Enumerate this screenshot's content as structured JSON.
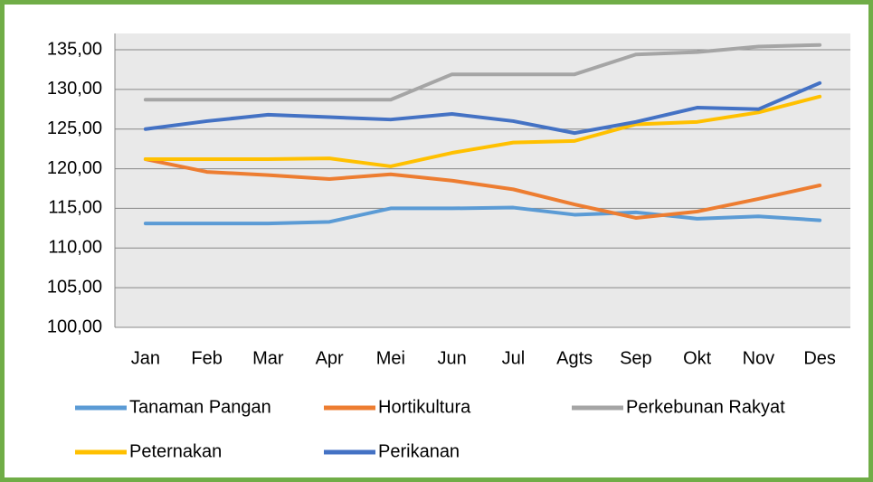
{
  "chart_data": {
    "type": "line",
    "categories": [
      "Jan",
      "Feb",
      "Mar",
      "Apr",
      "Mei",
      "Jun",
      "Jul",
      "Agts",
      "Sep",
      "Okt",
      "Nov",
      "Des"
    ],
    "series": [
      {
        "name": "Tanaman Pangan",
        "color": "#5b9bd5",
        "values": [
          113.1,
          113.1,
          113.1,
          113.3,
          115.0,
          115.0,
          115.1,
          114.2,
          114.5,
          113.7,
          114.0,
          113.5
        ]
      },
      {
        "name": "Hortikultura",
        "color": "#ed7d31",
        "values": [
          121.2,
          119.6,
          119.2,
          118.7,
          119.3,
          118.5,
          117.4,
          115.5,
          113.8,
          114.6,
          116.2,
          117.9
        ]
      },
      {
        "name": "Perkebunan Rakyat",
        "color": "#a5a5a5",
        "values": [
          128.7,
          128.7,
          128.7,
          128.7,
          128.7,
          131.9,
          131.9,
          131.9,
          134.4,
          134.7,
          135.4,
          135.6
        ]
      },
      {
        "name": "Peternakan",
        "color": "#ffc000",
        "values": [
          121.2,
          121.2,
          121.2,
          121.3,
          120.3,
          122.0,
          123.3,
          123.5,
          125.6,
          125.9,
          127.1,
          129.1
        ]
      },
      {
        "name": "Perikanan",
        "color": "#4472c4",
        "values": [
          125.0,
          126.0,
          126.8,
          126.5,
          126.2,
          126.9,
          126.0,
          124.5,
          125.9,
          127.7,
          127.5,
          130.8
        ]
      }
    ],
    "ylim": [
      100,
      135
    ],
    "yticks": [
      {
        "value": 100,
        "label": "100,00"
      },
      {
        "value": 105,
        "label": "105,00"
      },
      {
        "value": 110,
        "label": "110,00"
      },
      {
        "value": 115,
        "label": "115,00"
      },
      {
        "value": 120,
        "label": "120,00"
      },
      {
        "value": 125,
        "label": "125,00"
      },
      {
        "value": 130,
        "label": "130,00"
      },
      {
        "value": 135,
        "label": "135,00"
      }
    ],
    "grid": true
  }
}
